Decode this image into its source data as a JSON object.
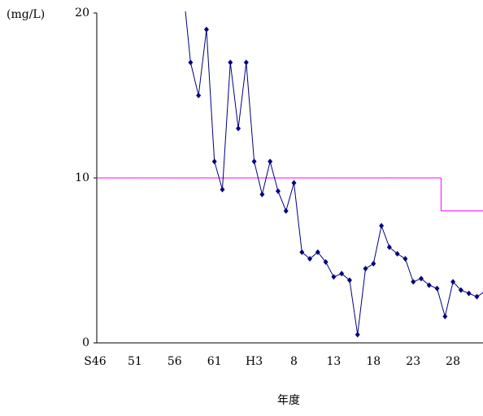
{
  "chart_data": {
    "type": "line",
    "y_label": "(mg/L)",
    "x_label": "年度",
    "categories": [
      "S46",
      null,
      null,
      null,
      null,
      "51",
      null,
      null,
      null,
      null,
      "56",
      null,
      null,
      null,
      null,
      "61",
      null,
      null,
      null,
      null,
      "H3",
      null,
      null,
      null,
      null,
      "8",
      null,
      null,
      null,
      null,
      "13",
      null,
      null,
      null,
      null,
      "18",
      null,
      null,
      null,
      null,
      "23",
      null,
      null,
      null,
      null,
      "28",
      null,
      null,
      null,
      null
    ],
    "series": [
      {
        "color": "#000080",
        "style": "line-markers",
        "values": [
          null,
          null,
          null,
          null,
          null,
          null,
          null,
          null,
          null,
          null,
          null,
          21.8,
          17,
          15,
          19,
          11,
          9.3,
          17,
          13,
          17,
          11,
          9,
          11,
          9.2,
          8,
          9.7,
          5.5,
          5.1,
          5.5,
          4.9,
          4.0,
          4.2,
          3.8,
          0.5,
          4.5,
          4.8,
          7.1,
          5.8,
          5.4,
          5.1,
          3.7,
          3.9,
          3.5,
          3.3,
          1.6,
          3.7,
          3.2,
          3.0,
          2.8,
          3.1
        ]
      },
      {
        "color": "#ff00ff",
        "style": "step",
        "values": [
          10,
          10,
          10,
          10,
          10,
          10,
          10,
          10,
          10,
          10,
          10,
          10,
          10,
          10,
          10,
          10,
          10,
          10,
          10,
          10,
          10,
          10,
          10,
          10,
          10,
          10,
          10,
          10,
          10,
          10,
          10,
          10,
          10,
          10,
          10,
          10,
          10,
          10,
          10,
          10,
          10,
          10,
          10,
          10,
          8,
          8,
          8,
          8,
          8,
          8
        ]
      }
    ],
    "ylim": [
      0,
      20
    ],
    "yticks": [
      0,
      10,
      20
    ]
  }
}
